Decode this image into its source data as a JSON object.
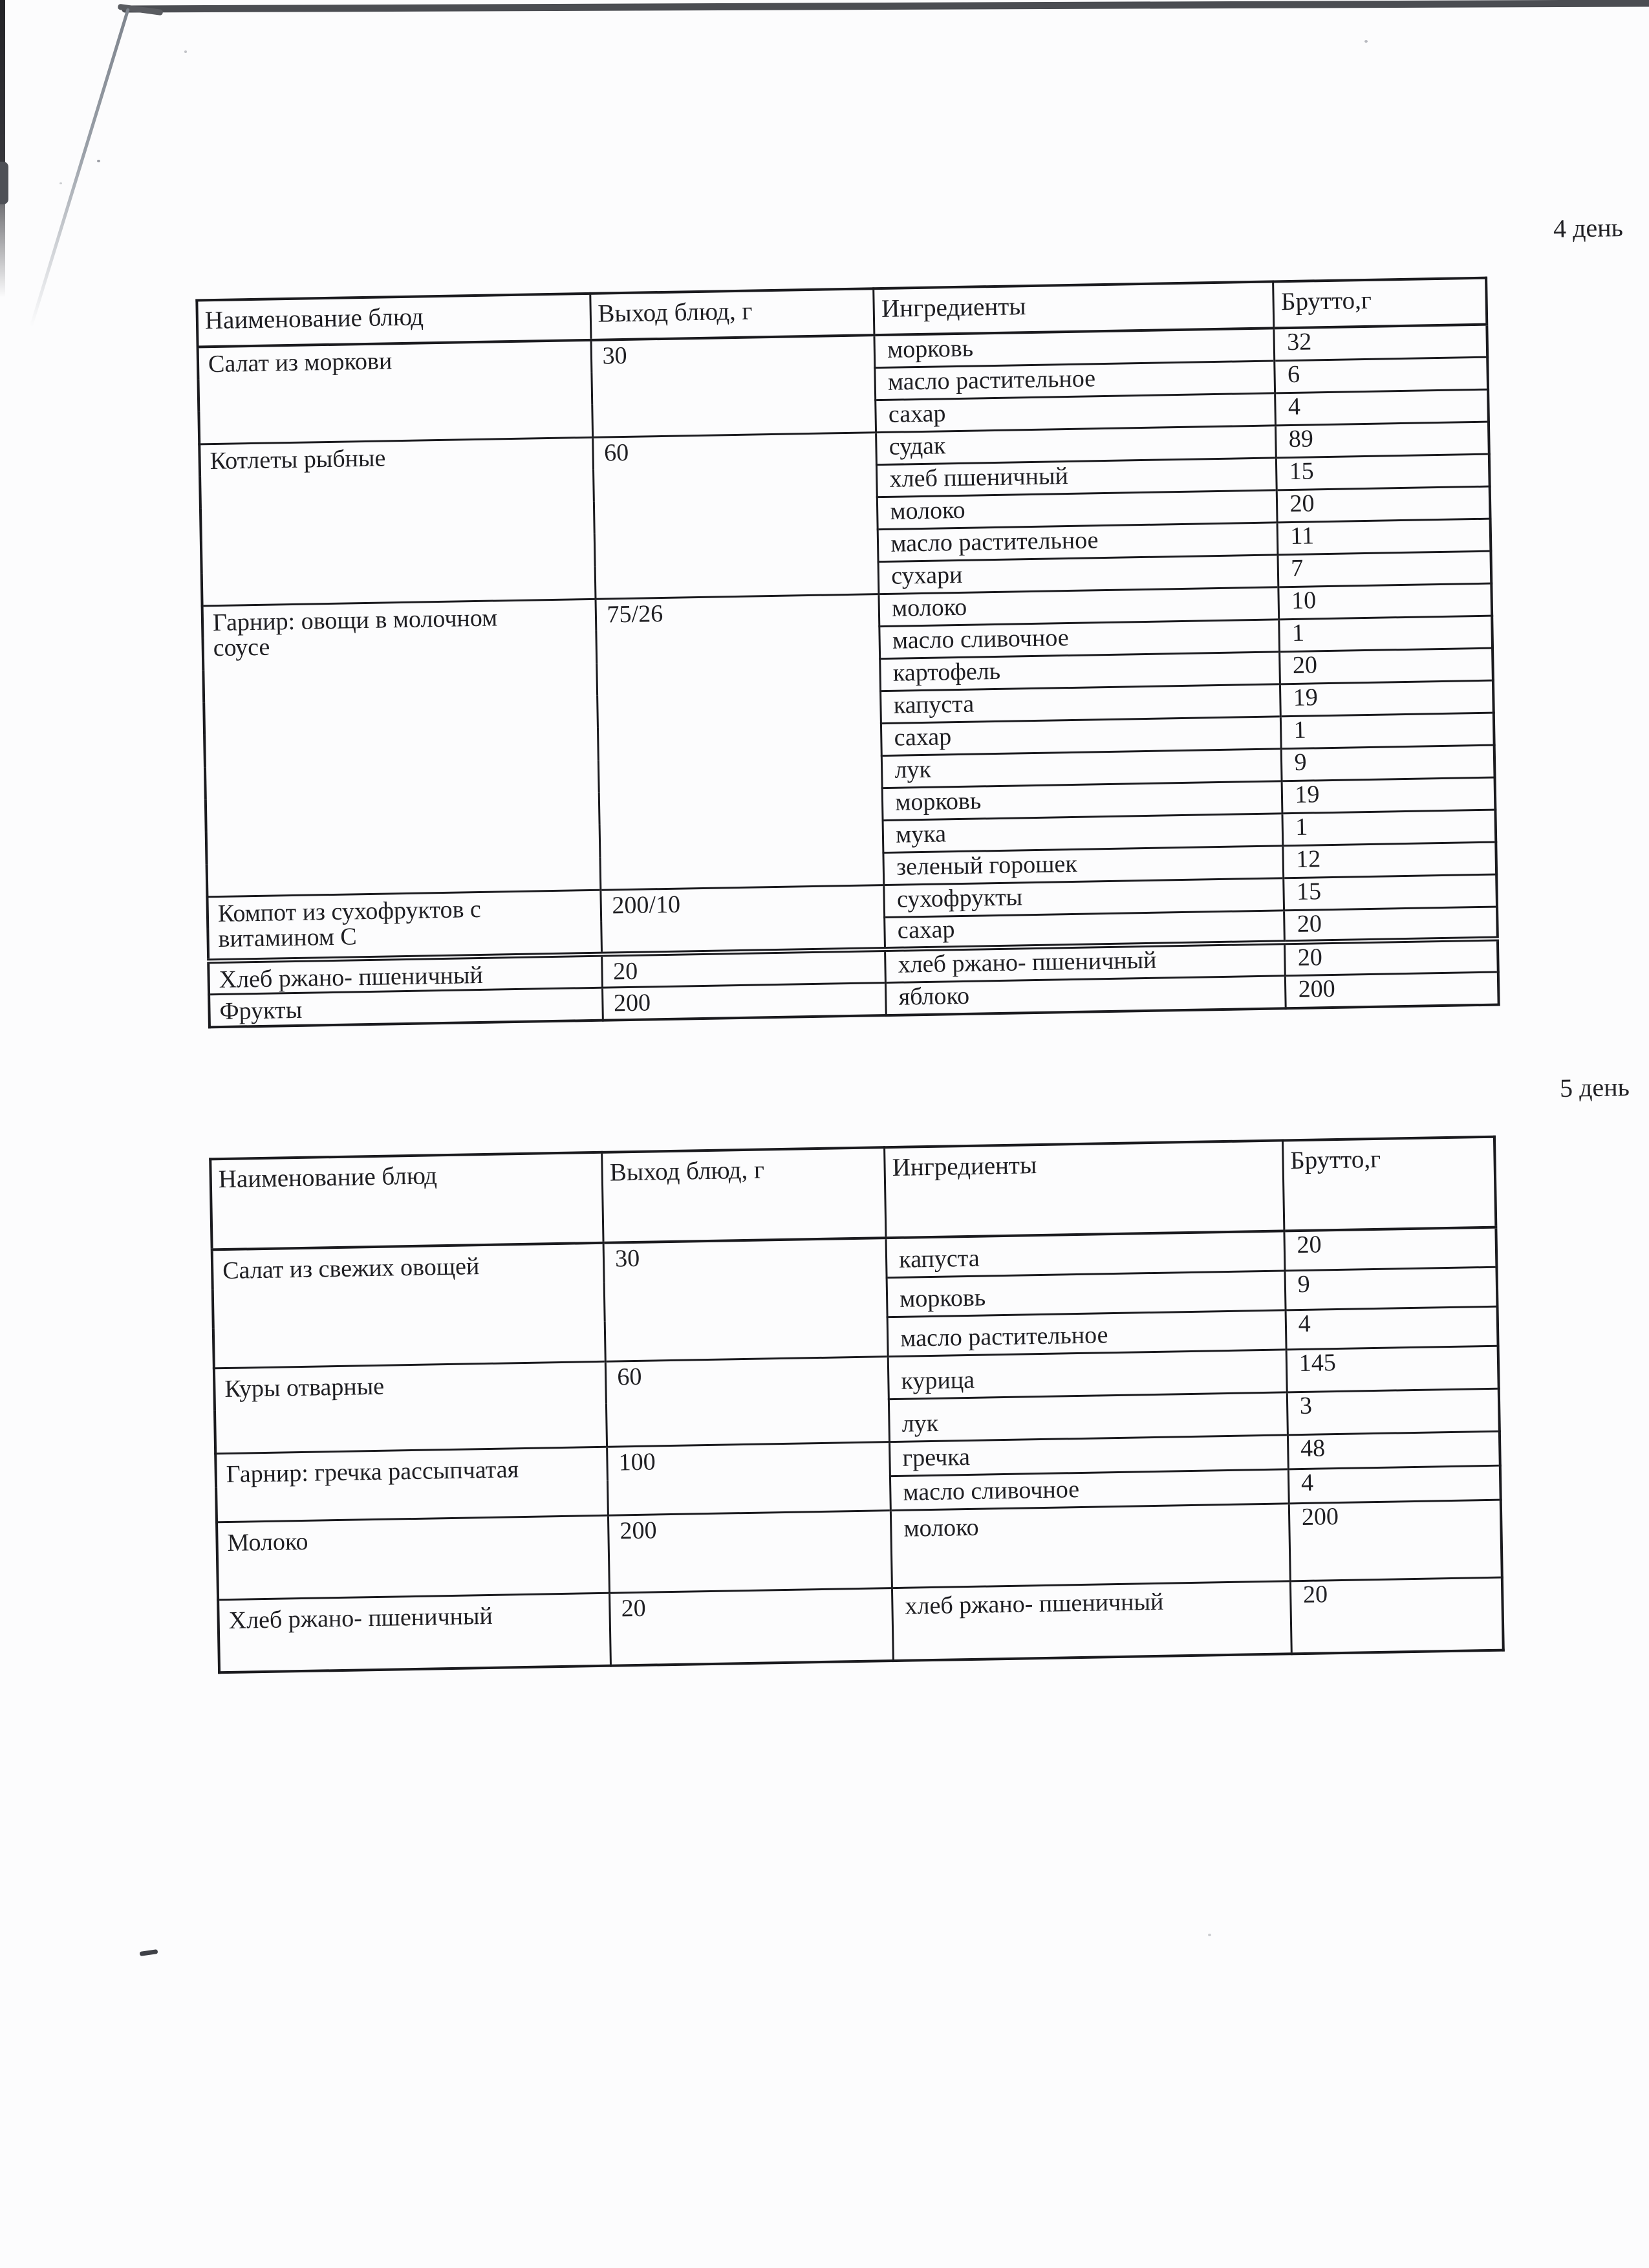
{
  "colors": {
    "paper": "#fcfcfd",
    "ink": "#1f1f23",
    "table_border": "#1a1a1e",
    "scan_edge": "#4b4d52"
  },
  "tables": [
    {
      "day_label": "4 день",
      "headers": [
        "Наименование блюд",
        "Выход блюд, г",
        "Ингредиенты",
        "Брутто,г"
      ],
      "groups": [
        {
          "dish": "Салат из моркови",
          "output": "30",
          "ingredients": [
            {
              "name": "морковь",
              "gross": "32"
            },
            {
              "name": "масло растительное",
              "gross": "6"
            },
            {
              "name": "сахар",
              "gross": "4"
            }
          ]
        },
        {
          "dish": "Котлеты рыбные",
          "output": "60",
          "ingredients": [
            {
              "name": "судак",
              "gross": "89"
            },
            {
              "name": "хлеб пшеничный",
              "gross": "15"
            },
            {
              "name": "молоко",
              "gross": "20"
            },
            {
              "name": "масло растительное",
              "gross": "11"
            },
            {
              "name": "сухари",
              "gross": "7"
            }
          ]
        },
        {
          "dish": "Гарнир: овощи в молочном\nсоусе",
          "output": "75/26",
          "ingredients": [
            {
              "name": "молоко",
              "gross": "10"
            },
            {
              "name": "масло сливочное",
              "gross": "1"
            },
            {
              "name": "картофель",
              "gross": "20"
            },
            {
              "name": "капуста",
              "gross": "19"
            },
            {
              "name": "сахар",
              "gross": "1"
            },
            {
              "name": "лук",
              "gross": "9"
            },
            {
              "name": "морковь",
              "gross": "19"
            },
            {
              "name": "мука",
              "gross": "1"
            },
            {
              "name": "зеленый горошек",
              "gross": "12"
            }
          ]
        },
        {
          "dish": "Компот из сухофруктов с\nвитамином С",
          "output": "200/10",
          "ingredients": [
            {
              "name": "сухофрукты",
              "gross": "15"
            },
            {
              "name": "сахар",
              "gross": "20"
            }
          ]
        },
        {
          "dish": "Хлеб ржано- пшеничный",
          "output": "20",
          "ingredients": [
            {
              "name": "хлеб ржано- пшеничный",
              "gross": "20"
            }
          ]
        },
        {
          "dish": "Фрукты",
          "output": "200",
          "ingredients": [
            {
              "name": "яблоко",
              "gross": "200"
            }
          ]
        }
      ]
    },
    {
      "day_label": "5 день",
      "headers": [
        "Наименование блюд",
        "Выход блюд, г",
        "Ингредиенты",
        "Брутто,г"
      ],
      "groups": [
        {
          "dish": "Салат из свежих овощей",
          "output": "30",
          "ingredients": [
            {
              "name": "капуста",
              "gross": "20"
            },
            {
              "name": "морковь",
              "gross": "9"
            },
            {
              "name": "масло растительное",
              "gross": "4"
            }
          ]
        },
        {
          "dish": "Куры отварные",
          "output": "60",
          "ingredients": [
            {
              "name": "курица",
              "gross": "145"
            },
            {
              "name": "лук",
              "gross": "3"
            }
          ]
        },
        {
          "dish": "Гарнир: гречка рассыпчатая",
          "output": "100",
          "ingredients": [
            {
              "name": "гречка",
              "gross": "48"
            },
            {
              "name": "масло сливочное",
              "gross": "4"
            }
          ]
        },
        {
          "dish": "Молоко",
          "output": "200",
          "ingredients": [
            {
              "name": "молоко",
              "gross": "200"
            }
          ]
        },
        {
          "dish": "Хлеб ржано- пшеничный",
          "output": "20",
          "ingredients": [
            {
              "name": "хлеб ржано- пшеничный",
              "gross": "20"
            }
          ]
        }
      ]
    }
  ]
}
